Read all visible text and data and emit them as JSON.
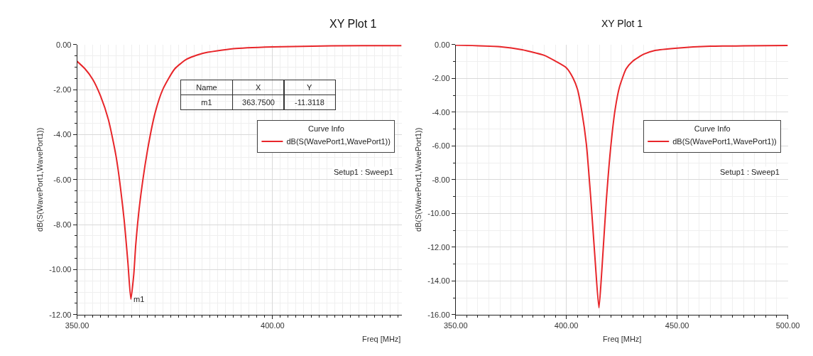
{
  "chart_data": [
    {
      "type": "line",
      "title": "XY Plot 1",
      "xlabel": "Freq [MHz]",
      "ylabel": "dB(S(WavePort1,WavePort1))",
      "legend_title": "Curve Info",
      "x": [
        350,
        352,
        354,
        356,
        358,
        360,
        362,
        363,
        363.75,
        364.5,
        365,
        366,
        368,
        370,
        372,
        375,
        378,
        382,
        390,
        400,
        415,
        433
      ],
      "series": [
        {
          "name": "dB(S(WavePort1,WavePort1))",
          "color": "#e8262a",
          "values": [
            -0.74,
            -1.07,
            -1.54,
            -2.28,
            -3.33,
            -5.0,
            -7.74,
            -9.7,
            -11.31,
            -10.2,
            -8.9,
            -7.1,
            -4.7,
            -3.0,
            -1.96,
            -1.07,
            -0.65,
            -0.39,
            -0.18,
            -0.1,
            -0.05,
            -0.04
          ]
        }
      ],
      "xlim": [
        350,
        433
      ],
      "xticks": [
        {
          "value": 350,
          "label": "350.00"
        },
        {
          "value": 400,
          "label": "400.00"
        }
      ],
      "ylim": [
        -12,
        0
      ],
      "yticks": [
        {
          "value": -12,
          "label": "-12.00"
        },
        {
          "value": -10,
          "label": "-10.00"
        },
        {
          "value": -8,
          "label": "-8.00"
        },
        {
          "value": -6,
          "label": "-6.00"
        },
        {
          "value": -4,
          "label": "-4.00"
        },
        {
          "value": -2,
          "label": "-2.00"
        },
        {
          "value": 0,
          "label": "0.00"
        }
      ],
      "grid": true,
      "legend": "right",
      "marker": "none",
      "line_style": "solid",
      "annotations": [
        "Setup1 : Sweep1",
        "Name",
        "X",
        "Y",
        "m1",
        "363.7500",
        "-11.3118",
        {
          "text": "m1",
          "x": 363.75,
          "y": -11.3118
        }
      ]
    },
    {
      "type": "line",
      "title": "XY Plot 1",
      "xlabel": "Freq [MHz]",
      "ylabel": "dB(S(WavePort1,WavePort1))",
      "legend_title": "Curve Info",
      "x": [
        350,
        370,
        380,
        390,
        395,
        400,
        403,
        405,
        407,
        409,
        411,
        413,
        414.7,
        416,
        418,
        420,
        422,
        424,
        427,
        430,
        435,
        440,
        450,
        465,
        480,
        500
      ],
      "series": [
        {
          "name": "dB(S(WavePort1,WavePort1))",
          "color": "#e8262a",
          "values": [
            -0.03,
            -0.12,
            -0.3,
            -0.63,
            -0.97,
            -1.37,
            -1.97,
            -2.64,
            -3.98,
            -5.86,
            -9.07,
            -12.8,
            -15.6,
            -13.4,
            -9.3,
            -6.1,
            -3.85,
            -2.5,
            -1.43,
            -0.97,
            -0.56,
            -0.34,
            -0.2,
            -0.09,
            -0.07,
            -0.05
          ]
        }
      ],
      "xlim": [
        350,
        500
      ],
      "xticks": [
        {
          "value": 350,
          "label": "350.00"
        },
        {
          "value": 400,
          "label": "400.00"
        },
        {
          "value": 450,
          "label": "450.00"
        },
        {
          "value": 500,
          "label": "500.00"
        }
      ],
      "ylim": [
        -16,
        0
      ],
      "yticks": [
        {
          "value": -16,
          "label": "-16.00"
        },
        {
          "value": -14,
          "label": "-14.00"
        },
        {
          "value": -12,
          "label": "-12.00"
        },
        {
          "value": -10,
          "label": "-10.00"
        },
        {
          "value": -8,
          "label": "-8.00"
        },
        {
          "value": -6,
          "label": "-6.00"
        },
        {
          "value": -4,
          "label": "-4.00"
        },
        {
          "value": -2,
          "label": "-2.00"
        },
        {
          "value": 0,
          "label": "0.00"
        }
      ],
      "grid": true,
      "legend": "right",
      "marker": "none",
      "line_style": "solid",
      "annotations": [
        "Setup1 : Sweep1"
      ]
    }
  ]
}
